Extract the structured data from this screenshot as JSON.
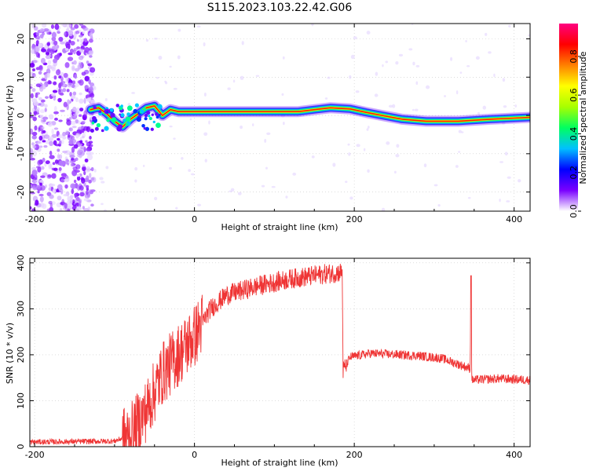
{
  "title": "S115.2023.103.22.42.G06",
  "chart_data": [
    {
      "type": "heatmap",
      "xlabel": "Height of straight line (km)",
      "ylabel": "Frequency (Hz)",
      "xlim": [
        -206,
        420
      ],
      "ylim": [
        -25,
        24
      ],
      "xticks": [
        -200,
        0,
        200,
        400
      ],
      "yticks": [
        20,
        10,
        0,
        -10,
        -20
      ],
      "grid": true,
      "ridge": [
        {
          "x": -130,
          "y": 1.5
        },
        {
          "x": -120,
          "y": 2.0
        },
        {
          "x": -110,
          "y": 0.5
        },
        {
          "x": -100,
          "y": -1.5
        },
        {
          "x": -90,
          "y": -3.0
        },
        {
          "x": -80,
          "y": -1.0
        },
        {
          "x": -70,
          "y": 0.5
        },
        {
          "x": -60,
          "y": 2.0
        },
        {
          "x": -50,
          "y": 2.5
        },
        {
          "x": -40,
          "y": 0.0
        },
        {
          "x": -30,
          "y": 1.5
        },
        {
          "x": -20,
          "y": 1.0
        },
        {
          "x": 0,
          "y": 1.0
        },
        {
          "x": 50,
          "y": 1.0
        },
        {
          "x": 100,
          "y": 1.0
        },
        {
          "x": 130,
          "y": 1.0
        },
        {
          "x": 150,
          "y": 1.5
        },
        {
          "x": 170,
          "y": 2.0
        },
        {
          "x": 195,
          "y": 1.7
        },
        {
          "x": 215,
          "y": 0.8
        },
        {
          "x": 235,
          "y": 0.0
        },
        {
          "x": 260,
          "y": -1.0
        },
        {
          "x": 290,
          "y": -1.5
        },
        {
          "x": 330,
          "y": -1.5
        },
        {
          "x": 370,
          "y": -1.0
        },
        {
          "x": 420,
          "y": -0.5
        }
      ]
    },
    {
      "type": "line",
      "xlabel": "Height of straight line (km)",
      "ylabel": "SNR (10 * v/v)",
      "xlim": [
        -206,
        420
      ],
      "ylim": [
        0,
        410
      ],
      "xticks": [
        -200,
        0,
        200,
        400
      ],
      "yticks": [
        0,
        100,
        200,
        300,
        400
      ],
      "grid": true,
      "series": [
        {
          "color": "#ef3535",
          "points": [
            {
              "x": -206,
              "y": 10
            },
            {
              "x": -100,
              "y": 12
            },
            {
              "x": -80,
              "y": 25
            },
            {
              "x": -60,
              "y": 80
            },
            {
              "x": -40,
              "y": 160
            },
            {
              "x": -20,
              "y": 200
            },
            {
              "x": 0,
              "y": 240
            },
            {
              "x": 20,
              "y": 300
            },
            {
              "x": 40,
              "y": 330
            },
            {
              "x": 80,
              "y": 350
            },
            {
              "x": 120,
              "y": 365
            },
            {
              "x": 160,
              "y": 375
            },
            {
              "x": 185,
              "y": 380
            },
            {
              "x": 186,
              "y": 165
            },
            {
              "x": 195,
              "y": 195
            },
            {
              "x": 220,
              "y": 203
            },
            {
              "x": 280,
              "y": 198
            },
            {
              "x": 310,
              "y": 192
            },
            {
              "x": 345,
              "y": 170
            },
            {
              "x": 346,
              "y": 360
            },
            {
              "x": 347,
              "y": 145
            },
            {
              "x": 380,
              "y": 148
            },
            {
              "x": 420,
              "y": 145
            }
          ]
        }
      ]
    }
  ],
  "colorbar": {
    "label": "Normalized spectral amplitude",
    "ticks": [
      "0.0",
      "0.2",
      "0.4",
      "0.6",
      "0.8"
    ],
    "colors": [
      "#ffffff",
      "#7a00ff",
      "#0000ff",
      "#00c0ff",
      "#00ff60",
      "#a8ff00",
      "#ffff00",
      "#ff8000",
      "#ff0000",
      "#ff0080"
    ]
  }
}
